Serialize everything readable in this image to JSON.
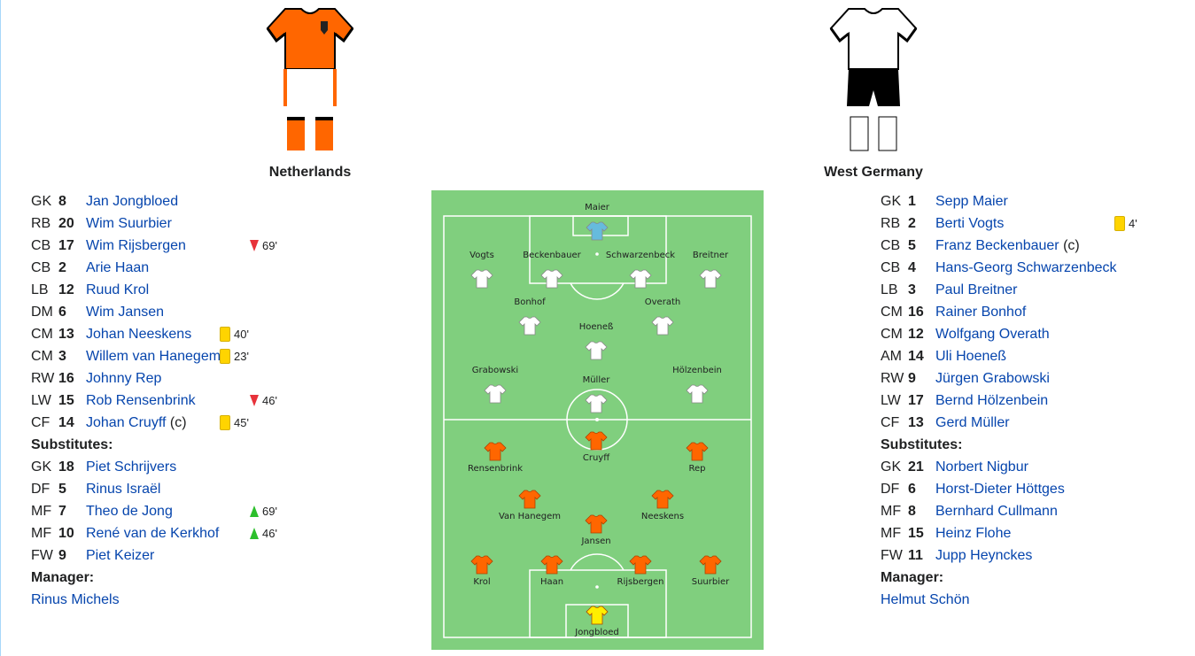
{
  "teams": {
    "home": {
      "name": "Netherlands",
      "colors": {
        "shirt": "#ff6600",
        "shorts": "#ffffff",
        "socks": "#ff6600"
      },
      "lineup": [
        {
          "pos": "GK",
          "num": "8",
          "name": "Jan Jongbloed"
        },
        {
          "pos": "RB",
          "num": "20",
          "name": "Wim Suurbier"
        },
        {
          "pos": "CB",
          "num": "17",
          "name": "Wim Rijsbergen",
          "event": {
            "type": "sub-off",
            "minute": "69'"
          }
        },
        {
          "pos": "CB",
          "num": "2",
          "name": "Arie Haan"
        },
        {
          "pos": "LB",
          "num": "12",
          "name": "Ruud Krol"
        },
        {
          "pos": "DM",
          "num": "6",
          "name": "Wim Jansen"
        },
        {
          "pos": "CM",
          "num": "13",
          "name": "Johan Neeskens",
          "event": {
            "type": "yellow-card",
            "minute": "40'"
          }
        },
        {
          "pos": "CM",
          "num": "3",
          "name": "Willem van Hanegem",
          "event": {
            "type": "yellow-card",
            "minute": "23'"
          }
        },
        {
          "pos": "RW",
          "num": "16",
          "name": "Johnny Rep"
        },
        {
          "pos": "LW",
          "num": "15",
          "name": "Rob Rensenbrink",
          "event": {
            "type": "sub-off",
            "minute": "46'"
          }
        },
        {
          "pos": "CF",
          "num": "14",
          "name": "Johan Cruyff",
          "suffix": " (c)",
          "event": {
            "type": "yellow-card",
            "minute": "45'"
          }
        }
      ],
      "substitutes_label": "Substitutes:",
      "substitutes": [
        {
          "pos": "GK",
          "num": "18",
          "name": "Piet Schrijvers"
        },
        {
          "pos": "DF",
          "num": "5",
          "name": "Rinus Israël"
        },
        {
          "pos": "MF",
          "num": "7",
          "name": "Theo de Jong",
          "event": {
            "type": "sub-on",
            "minute": "69'"
          }
        },
        {
          "pos": "MF",
          "num": "10",
          "name": "René van de Kerkhof",
          "event": {
            "type": "sub-on",
            "minute": "46'"
          }
        },
        {
          "pos": "FW",
          "num": "9",
          "name": "Piet Keizer"
        }
      ],
      "manager_label": "Manager:",
      "manager": "Rinus Michels"
    },
    "away": {
      "name": "West Germany",
      "colors": {
        "shirt": "#ffffff",
        "shorts": "#000000",
        "socks": "#ffffff"
      },
      "lineup": [
        {
          "pos": "GK",
          "num": "1",
          "name": "Sepp Maier"
        },
        {
          "pos": "RB",
          "num": "2",
          "name": "Berti Vogts",
          "event": {
            "type": "yellow-card",
            "minute": "4'"
          }
        },
        {
          "pos": "CB",
          "num": "5",
          "name": "Franz Beckenbauer",
          "suffix": " (c)"
        },
        {
          "pos": "CB",
          "num": "4",
          "name": "Hans-Georg Schwarzenbeck"
        },
        {
          "pos": "LB",
          "num": "3",
          "name": "Paul Breitner"
        },
        {
          "pos": "CM",
          "num": "16",
          "name": "Rainer Bonhof"
        },
        {
          "pos": "CM",
          "num": "12",
          "name": "Wolfgang Overath"
        },
        {
          "pos": "AM",
          "num": "14",
          "name": "Uli Hoeneß"
        },
        {
          "pos": "RW",
          "num": "9",
          "name": "Jürgen Grabowski"
        },
        {
          "pos": "LW",
          "num": "17",
          "name": "Bernd Hölzenbein"
        },
        {
          "pos": "CF",
          "num": "13",
          "name": "Gerd Müller"
        }
      ],
      "substitutes_label": "Substitutes:",
      "substitutes": [
        {
          "pos": "GK",
          "num": "21",
          "name": "Norbert Nigbur"
        },
        {
          "pos": "DF",
          "num": "6",
          "name": "Horst-Dieter Höttges"
        },
        {
          "pos": "MF",
          "num": "8",
          "name": "Bernhard Cullmann"
        },
        {
          "pos": "MF",
          "num": "15",
          "name": "Heinz Flohe"
        },
        {
          "pos": "FW",
          "num": "11",
          "name": "Jupp Heynckes"
        }
      ],
      "manager_label": "Manager:",
      "manager": "Helmut Schön"
    }
  },
  "pitch": {
    "colors": {
      "grass": "#80cf7e",
      "lines": "#ffffff",
      "home_shirt": "#ff6600",
      "home_gk": "#ffee00",
      "away_shirt": "#ffffff",
      "away_gk": "#66bbdd"
    },
    "away_players": [
      "Maier",
      "Vogts",
      "Beckenbauer",
      "Schwarzenbeck",
      "Breitner",
      "Bonhof",
      "Overath",
      "Hoeneß",
      "Grabowski",
      "Müller",
      "Hölzenbein"
    ],
    "home_players": [
      "Cruyff",
      "Rensenbrink",
      "Rep",
      "Van Hanegem",
      "Neeskens",
      "Jansen",
      "Krol",
      "Haan",
      "Rijsbergen",
      "Suurbier",
      "Jongbloed"
    ]
  }
}
